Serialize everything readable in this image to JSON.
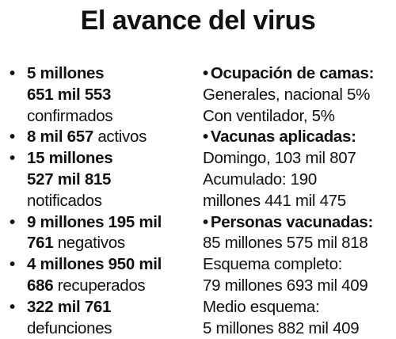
{
  "title": "El avance del virus",
  "bullet": "•",
  "left_items": [
    {
      "lines": [
        {
          "bold": "5 millones",
          "normal": ""
        },
        {
          "bold": "651 mil 553",
          "normal": ""
        },
        {
          "bold": "",
          "normal": "confirmados"
        }
      ]
    },
    {
      "lines": [
        {
          "bold": "8 mil 657",
          "normal": " activos"
        }
      ]
    },
    {
      "lines": [
        {
          "bold": "15 millones",
          "normal": ""
        },
        {
          "bold": "527 mil 815",
          "normal": ""
        },
        {
          "bold": "",
          "normal": "notificados"
        }
      ]
    },
    {
      "lines": [
        {
          "bold": "9 millones 195 mil",
          "normal": ""
        },
        {
          "bold": "761",
          "normal": " negativos"
        }
      ]
    },
    {
      "lines": [
        {
          "bold": "4 millones 950 mil",
          "normal": ""
        },
        {
          "bold": "686",
          "normal": " recuperados"
        }
      ]
    },
    {
      "lines": [
        {
          "bold": "322 mil 761",
          "normal": ""
        },
        {
          "bold": "",
          "normal": "defunciones"
        }
      ]
    }
  ],
  "right": {
    "camas": {
      "heading": "Ocupación de camas:",
      "lines": [
        "Generales, nacional 5%",
        "Con ventilador, 5%"
      ]
    },
    "vacunas": {
      "heading": "Vacunas aplicadas:",
      "lines": [
        "Domingo, 103 mil 807",
        "Acumulado: 190",
        "millones 441 mil 475"
      ]
    },
    "personas": {
      "heading": "Personas vacunadas:",
      "lines": [
        "85 millones 575 mil 818",
        "Esquema completo:",
        "79 millones 693 mil 409",
        "Medio esquema:",
        "5 millones 882 mil 409"
      ]
    }
  }
}
